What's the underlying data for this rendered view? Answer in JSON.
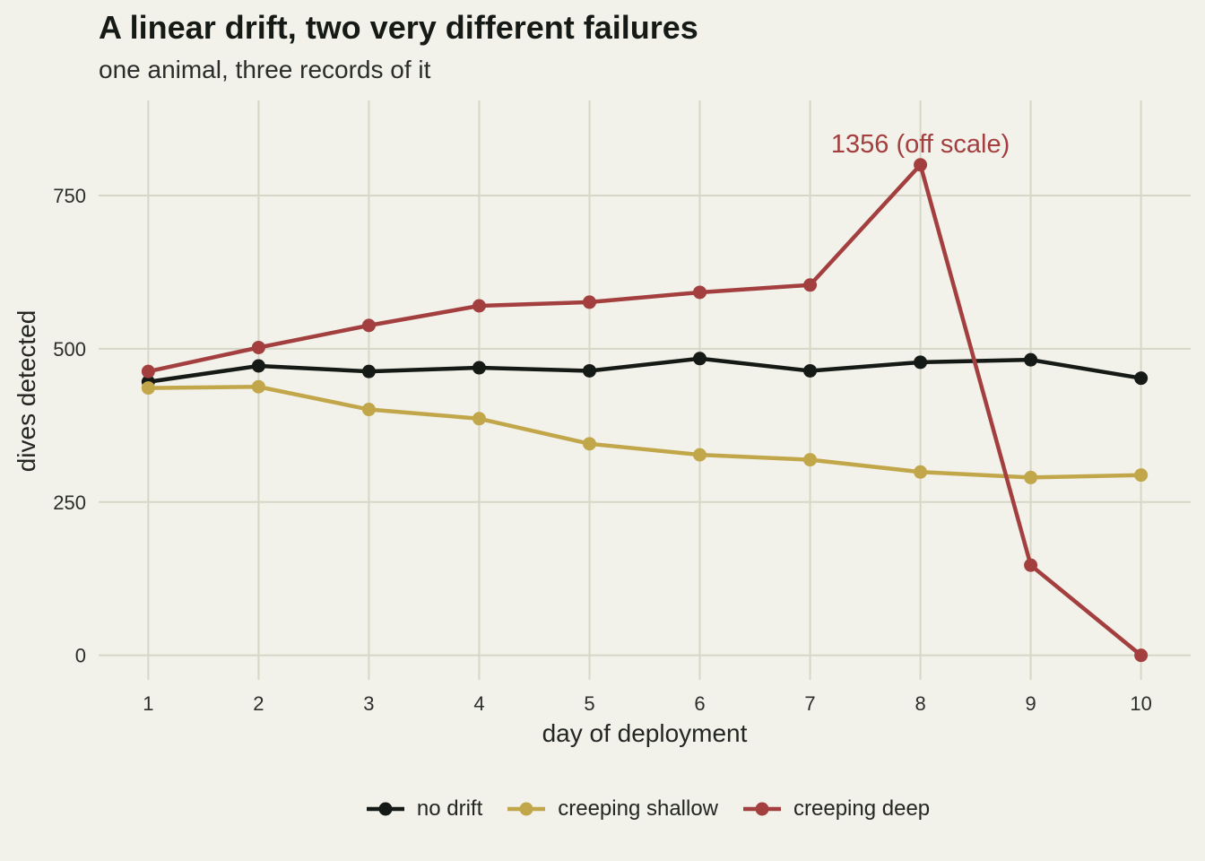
{
  "chart_data": {
    "type": "line",
    "title": "A linear drift, two very different failures",
    "subtitle": "one animal, three records of it",
    "xlabel": "day of deployment",
    "ylabel": "dives detected",
    "x": [
      1,
      2,
      3,
      4,
      5,
      6,
      7,
      8,
      9,
      10
    ],
    "xlim": [
      0.55,
      10.45
    ],
    "ylim": [
      -40,
      905
    ],
    "yticks": [
      0,
      250,
      500,
      750
    ],
    "grid": true,
    "legend_position": "bottom",
    "series": [
      {
        "name": "no drift",
        "color": "#151a16",
        "values": [
          446,
          472,
          463,
          469,
          464,
          484,
          464,
          478,
          482,
          452
        ]
      },
      {
        "name": "creeping shallow",
        "color": "#c2a74a",
        "values": [
          436,
          438,
          401,
          386,
          345,
          327,
          319,
          299,
          290,
          294
        ]
      },
      {
        "name": "creeping deep",
        "color": "#a33f3f",
        "values": [
          463,
          502,
          538,
          570,
          576,
          592,
          604,
          800,
          147,
          0
        ]
      }
    ],
    "annotations": [
      {
        "text": "1356 (off scale)",
        "x": 8,
        "series": "creeping deep",
        "color": "#a33f3f"
      }
    ]
  }
}
